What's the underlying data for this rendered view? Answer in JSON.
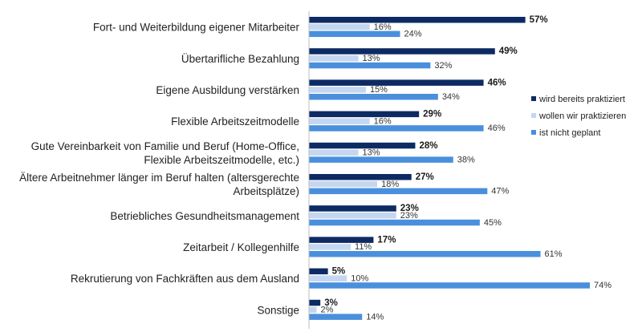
{
  "chart_data": {
    "type": "bar",
    "orientation": "horizontal",
    "categories": [
      [
        "Fort- und Weiterbildung eigener Mitarbeiter"
      ],
      [
        "Übertarifliche Bezahlung"
      ],
      [
        "Eigene Ausbildung verstärken"
      ],
      [
        "Flexible Arbeitszeitmodelle"
      ],
      [
        "Gute Vereinbarkeit von Familie und Beruf (Home-Office,",
        "Flexible Arbeitszeitmodelle, etc.)"
      ],
      [
        "Ältere Arbeitnehmer länger im Beruf halten (altersgerechte",
        "Arbeitsplätze)"
      ],
      [
        "Betriebliches Gesundheitsmanagement"
      ],
      [
        "Zeitarbeit / Kollegenhilfe"
      ],
      [
        "Rekrutierung von Fachkräften aus dem Ausland"
      ],
      [
        "Sonstige"
      ]
    ],
    "series": [
      {
        "name": "wird bereits praktiziert",
        "color": "#0d2a63",
        "values": [
          57,
          49,
          46,
          29,
          28,
          27,
          23,
          17,
          5,
          3
        ],
        "labels": [
          "57%",
          "49%",
          "46%",
          "29%",
          "28%",
          "27%",
          "23%",
          "17%",
          "5%",
          "3%"
        ]
      },
      {
        "name": "wollen wir praktizieren",
        "color": "#c5d7f0",
        "values": [
          16,
          13,
          15,
          16,
          13,
          18,
          23,
          11,
          10,
          2
        ],
        "labels": [
          "16%",
          "13%",
          "15%",
          "16%",
          "13%",
          "18%",
          "23%",
          "11%",
          "10%",
          "2%"
        ]
      },
      {
        "name": "ist nicht geplant",
        "color": "#4a8fdc",
        "values": [
          24,
          32,
          34,
          46,
          38,
          47,
          45,
          61,
          74,
          14
        ],
        "labels": [
          "24%",
          "32%",
          "34%",
          "46%",
          "38%",
          "47%",
          "45%",
          "61%",
          "74%",
          "14%"
        ]
      }
    ],
    "xlim": [
      0,
      74
    ],
    "grid": false,
    "legend_position": "right"
  }
}
